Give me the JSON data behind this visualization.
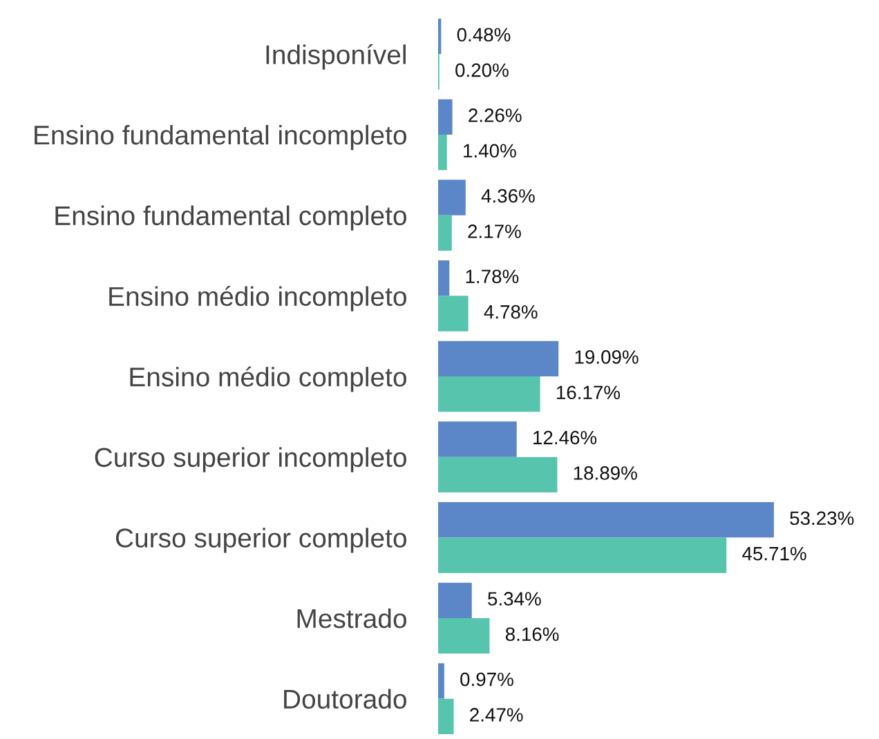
{
  "chart_data": {
    "type": "bar",
    "orientation": "horizontal",
    "categories": [
      "Indisponível",
      "Ensino fundamental incompleto",
      "Ensino fundamental completo",
      "Ensino médio incompleto",
      "Ensino médio completo",
      "Curso superior incompleto",
      "Curso superior completo",
      "Mestrado",
      "Doutorado"
    ],
    "series": [
      {
        "color": "#5b87c8",
        "values": [
          0.48,
          2.26,
          4.36,
          1.78,
          19.09,
          12.46,
          53.23,
          5.34,
          0.97
        ],
        "value_labels": [
          "0.48%",
          "2.26%",
          "4.36%",
          "1.78%",
          "19.09%",
          "12.46%",
          "53.23%",
          "5.34%",
          "0.97%"
        ]
      },
      {
        "color": "#57c4ad",
        "values": [
          0.2,
          1.4,
          2.17,
          4.78,
          16.17,
          18.89,
          45.71,
          8.16,
          2.47
        ],
        "value_labels": [
          "0.20%",
          "1.40%",
          "2.17%",
          "4.78%",
          "16.17%",
          "18.89%",
          "45.71%",
          "8.16%",
          "2.47%"
        ]
      }
    ],
    "grid": false,
    "tick_labels": "y"
  }
}
